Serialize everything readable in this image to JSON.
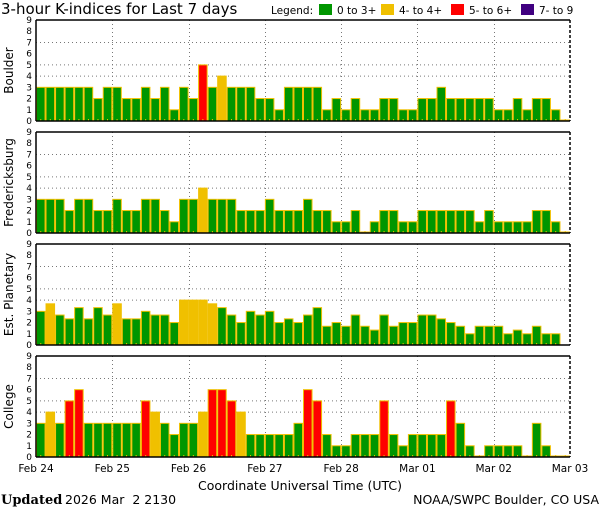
{
  "chart_data": {
    "type": "bar",
    "title": "3-hour K-indices for Last 7 days",
    "legend": {
      "label": "Legend:",
      "placement": "top-right",
      "items": [
        {
          "label": "0 to 3+",
          "color": "#009600"
        },
        {
          "label": "4- to 4+",
          "color": "#F0C000"
        },
        {
          "label": "5- to 6+",
          "color": "#FF0000"
        },
        {
          "label": "7- to 9",
          "color": "#400080"
        }
      ]
    },
    "bar_outline_color": "#F0C000",
    "xlabel": "Coordinate Universal Time (UTC)",
    "x_ticks": [
      "Feb 24",
      "Feb 25",
      "Feb 26",
      "Feb 27",
      "Feb 28",
      "Mar 01",
      "Mar 02",
      "Mar 03"
    ],
    "interval_hours": 3,
    "ylim": [
      0,
      9
    ],
    "y_ticks": [
      "0",
      "1",
      "2",
      "3",
      "4",
      "5",
      "6",
      "7",
      "8",
      "9"
    ],
    "grid": {
      "horizontal_at": [
        4,
        5,
        7
      ],
      "vertical_at_days": true,
      "style": "dotted"
    },
    "panels": [
      {
        "name": "Boulder",
        "values": [
          3,
          3,
          3,
          3,
          3,
          3,
          2,
          3,
          3,
          2,
          2,
          3,
          2,
          3,
          1,
          3,
          2,
          5,
          3,
          4,
          3,
          3,
          3,
          2,
          2,
          1,
          3,
          3,
          3,
          3,
          1,
          2,
          1,
          2,
          1,
          1,
          2,
          2,
          1,
          1,
          2,
          2,
          3,
          2,
          2,
          2,
          2,
          2,
          1,
          1,
          2,
          1,
          2,
          2,
          1,
          0
        ]
      },
      {
        "name": "Fredericksburg",
        "values": [
          3,
          3,
          3,
          2,
          3,
          3,
          2,
          2,
          3,
          2,
          2,
          3,
          3,
          2,
          1,
          3,
          3,
          4,
          3,
          3,
          3,
          2,
          2,
          2,
          3,
          2,
          2,
          2,
          3,
          2,
          2,
          1,
          1,
          2,
          0,
          1,
          2,
          2,
          1,
          1,
          2,
          2,
          2,
          2,
          2,
          2,
          1,
          2,
          1,
          1,
          1,
          1,
          2,
          2,
          1,
          0
        ]
      },
      {
        "name": "Est. Planetary",
        "values": [
          3,
          3.67,
          2.67,
          2.33,
          3.33,
          2.33,
          3.33,
          2.67,
          3.67,
          2.33,
          2.33,
          3,
          2.67,
          2.67,
          2,
          4,
          4,
          4,
          3.67,
          3.33,
          2.67,
          2,
          3,
          2.67,
          3,
          2,
          2.33,
          2,
          2.67,
          3.33,
          1.67,
          2,
          1.67,
          2.67,
          1.67,
          1.33,
          2.67,
          1.67,
          2,
          2,
          2.67,
          2.67,
          2.33,
          2,
          1.67,
          1,
          1.67,
          1.67,
          1.67,
          1,
          1.33,
          1,
          1.67,
          1,
          1,
          null
        ]
      },
      {
        "name": "College",
        "values": [
          3,
          4,
          3,
          5,
          6,
          3,
          3,
          3,
          3,
          3,
          3,
          5,
          4,
          3,
          2,
          3,
          3,
          4,
          6,
          6,
          5,
          4,
          2,
          2,
          2,
          2,
          2,
          3,
          6,
          5,
          2,
          1,
          1,
          2,
          2,
          2,
          5,
          2,
          1,
          2,
          2,
          2,
          2,
          5,
          3,
          1,
          0,
          1,
          1,
          1,
          1,
          0,
          3,
          1,
          0,
          0
        ]
      }
    ]
  },
  "footer": {
    "updated_label": "Updated",
    "updated_time": "2026 Mar  2 2130",
    "credit": "NOAA/SWPC Boulder, CO USA"
  }
}
